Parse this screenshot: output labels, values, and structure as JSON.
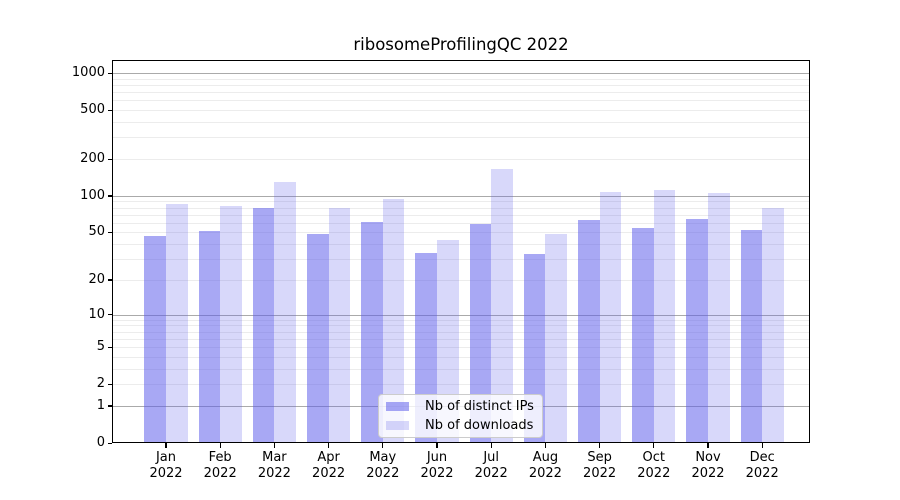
{
  "chart_data": {
    "type": "bar",
    "title": "ribosomeProfilingQC 2022",
    "categories": [
      {
        "month": "Jan",
        "year": "2022"
      },
      {
        "month": "Feb",
        "year": "2022"
      },
      {
        "month": "Mar",
        "year": "2022"
      },
      {
        "month": "Apr",
        "year": "2022"
      },
      {
        "month": "May",
        "year": "2022"
      },
      {
        "month": "Jun",
        "year": "2022"
      },
      {
        "month": "Jul",
        "year": "2022"
      },
      {
        "month": "Aug",
        "year": "2022"
      },
      {
        "month": "Sep",
        "year": "2022"
      },
      {
        "month": "Oct",
        "year": "2022"
      },
      {
        "month": "Nov",
        "year": "2022"
      },
      {
        "month": "Dec",
        "year": "2022"
      }
    ],
    "series": [
      {
        "name": "Nb of distinct IPs",
        "color": "rgba(90,90,235,0.53)",
        "values": [
          47,
          51,
          79,
          49,
          61,
          34,
          59,
          33,
          63,
          54,
          65,
          52
        ]
      },
      {
        "name": "Nb of downloads",
        "color": "rgba(90,90,235,0.24)",
        "values": [
          86,
          82,
          130,
          80,
          94,
          43,
          165,
          49,
          107,
          112,
          105,
          79
        ]
      }
    ],
    "yscale": "log1p",
    "yticks": [
      1000,
      500,
      200,
      100,
      50,
      20,
      10,
      5,
      2,
      1,
      0
    ],
    "ylim": [
      0,
      1276
    ],
    "grid": true,
    "legend_position": "lower center",
    "colors": {
      "major_grid": "#aaaaaa",
      "minor_grid": "#ececec",
      "frame": "#000000",
      "background": "#ffffff"
    }
  }
}
